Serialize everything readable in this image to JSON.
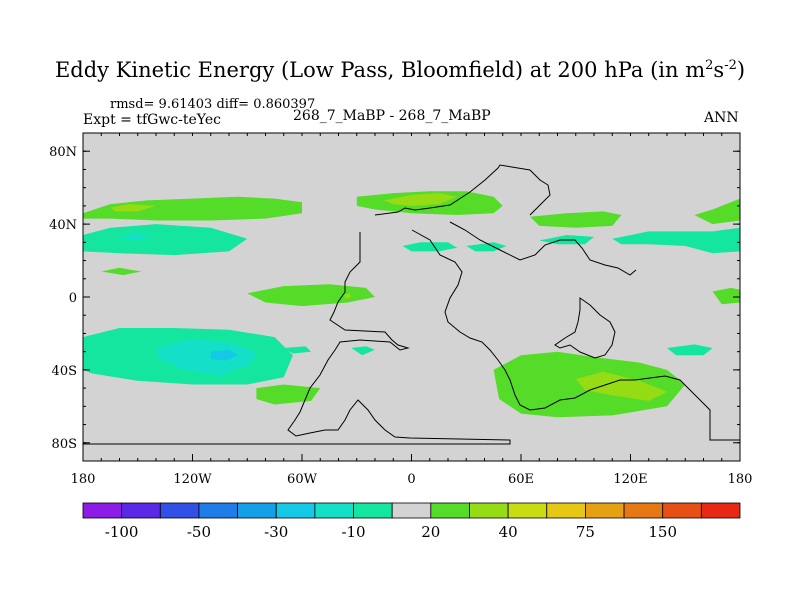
{
  "chart_data": {
    "type": "heatmap",
    "title": {
      "prefix": "Eddy Kinetic Energy (Low Pass, Bloomfield) at 200 hPa (in m",
      "sup1": "2",
      "mid": "s",
      "sup2": "-2",
      "suffix": ")"
    },
    "stats": "rmsd= 9.61403  diff= 0.860397",
    "expt": "Expt = tfGwc-teYec",
    "center_label": "268_7_MaBP - 268_7_MaBP",
    "season": "ANN",
    "x_range": [
      -180,
      180
    ],
    "y_range": [
      -90,
      90
    ],
    "x_ticks": [
      {
        "value": -180,
        "label": "180"
      },
      {
        "value": -120,
        "label": "120W"
      },
      {
        "value": -60,
        "label": "60W"
      },
      {
        "value": 0,
        "label": "0"
      },
      {
        "value": 60,
        "label": "60E"
      },
      {
        "value": 120,
        "label": "120E"
      },
      {
        "value": 180,
        "label": "180"
      }
    ],
    "y_ticks": [
      {
        "value": 80,
        "label": "80N"
      },
      {
        "value": 40,
        "label": "40N"
      },
      {
        "value": 0,
        "label": "0"
      },
      {
        "value": -40,
        "label": "40S"
      },
      {
        "value": -80,
        "label": "80S"
      }
    ],
    "background_color": "#d3d3d3",
    "colorbar": {
      "colors": [
        "#8c1de6",
        "#5a28e6",
        "#3250e6",
        "#1e7de6",
        "#14a0e6",
        "#14c8e6",
        "#14e0c8",
        "#14e6a0",
        "#d3d3d3",
        "#55dc28",
        "#96dc14",
        "#c8dc14",
        "#e6c814",
        "#e6a014",
        "#e67814",
        "#e65014",
        "#e62814"
      ],
      "labels": [
        {
          "index": 1,
          "label": "-100"
        },
        {
          "index": 3,
          "label": "-50"
        },
        {
          "index": 5,
          "label": "-30"
        },
        {
          "index": 7,
          "label": "-10"
        },
        {
          "index": 9,
          "label": "20"
        },
        {
          "index": 11,
          "label": "40"
        },
        {
          "index": 13,
          "label": "75"
        },
        {
          "index": 15,
          "label": "150"
        }
      ]
    },
    "regions": [
      {
        "name": "green-band-north-pacific",
        "color": "#55dc28",
        "points": [
          [
            -180,
            46
          ],
          [
            -165,
            51
          ],
          [
            -145,
            53
          ],
          [
            -120,
            54
          ],
          [
            -95,
            55
          ],
          [
            -75,
            54
          ],
          [
            -60,
            52
          ],
          [
            -60,
            46
          ],
          [
            -80,
            43
          ],
          [
            -110,
            42
          ],
          [
            -140,
            42
          ],
          [
            -165,
            43
          ],
          [
            -180,
            43
          ]
        ]
      },
      {
        "name": "yellow-patch-north-pacific",
        "color": "#96dc14",
        "points": [
          [
            -165,
            49
          ],
          [
            -155,
            51
          ],
          [
            -140,
            50
          ],
          [
            -150,
            47
          ],
          [
            -162,
            47
          ]
        ]
      },
      {
        "name": "cyan-band-north-pacific",
        "color": "#14e6a0",
        "points": [
          [
            -180,
            34
          ],
          [
            -165,
            38
          ],
          [
            -140,
            40
          ],
          [
            -110,
            38
          ],
          [
            -90,
            32
          ],
          [
            -100,
            25
          ],
          [
            -130,
            23
          ],
          [
            -160,
            24
          ],
          [
            -180,
            25
          ]
        ]
      },
      {
        "name": "blue-patch-north-pacific",
        "color": "#14e0c8",
        "points": [
          [
            -160,
            33
          ],
          [
            -150,
            35
          ],
          [
            -143,
            33
          ],
          [
            -152,
            31
          ]
        ]
      },
      {
        "name": "green-band-north-atlantic",
        "color": "#55dc28",
        "points": [
          [
            -30,
            55
          ],
          [
            -10,
            57
          ],
          [
            10,
            58
          ],
          [
            30,
            58
          ],
          [
            45,
            55
          ],
          [
            50,
            50
          ],
          [
            45,
            46
          ],
          [
            25,
            45
          ],
          [
            0,
            46
          ],
          [
            -20,
            48
          ],
          [
            -30,
            50
          ]
        ]
      },
      {
        "name": "yellow-patch-north-atlantic",
        "color": "#96dc14",
        "points": [
          [
            -15,
            53
          ],
          [
            0,
            56
          ],
          [
            15,
            57
          ],
          [
            25,
            55
          ],
          [
            15,
            51
          ],
          [
            0,
            50
          ],
          [
            -10,
            51
          ]
        ]
      },
      {
        "name": "cyan-patch-north-atlantic",
        "color": "#14e6a0",
        "points": [
          [
            -5,
            28
          ],
          [
            5,
            30
          ],
          [
            20,
            30
          ],
          [
            25,
            27
          ],
          [
            15,
            25
          ],
          [
            0,
            25
          ]
        ]
      },
      {
        "name": "cyan-patch-west-asia",
        "color": "#14e6a0",
        "points": [
          [
            30,
            28
          ],
          [
            45,
            30
          ],
          [
            52,
            28
          ],
          [
            45,
            25
          ],
          [
            35,
            25
          ]
        ]
      },
      {
        "name": "green-patch-east-asia",
        "color": "#55dc28",
        "points": [
          [
            65,
            44
          ],
          [
            85,
            46
          ],
          [
            105,
            47
          ],
          [
            115,
            45
          ],
          [
            110,
            39
          ],
          [
            90,
            38
          ],
          [
            70,
            39
          ]
        ]
      },
      {
        "name": "cyan-patch-asia",
        "color": "#14e6a0",
        "points": [
          [
            70,
            31
          ],
          [
            85,
            34
          ],
          [
            100,
            33
          ],
          [
            95,
            29
          ],
          [
            80,
            29
          ]
        ]
      },
      {
        "name": "green-band-north-west-pacific",
        "color": "#55dc28",
        "points": [
          [
            155,
            45
          ],
          [
            165,
            48
          ],
          [
            180,
            54
          ],
          [
            180,
            42
          ],
          [
            165,
            40
          ]
        ]
      },
      {
        "name": "cyan-band-west-pacific",
        "color": "#14e6a0",
        "points": [
          [
            110,
            32
          ],
          [
            130,
            36
          ],
          [
            150,
            36
          ],
          [
            165,
            36
          ],
          [
            180,
            38
          ],
          [
            180,
            25
          ],
          [
            165,
            24
          ],
          [
            150,
            28
          ],
          [
            130,
            29
          ],
          [
            115,
            29
          ]
        ]
      },
      {
        "name": "green-patch-equator-west",
        "color": "#55dc28",
        "points": [
          [
            -170,
            14
          ],
          [
            -160,
            16
          ],
          [
            -148,
            14
          ],
          [
            -158,
            12
          ]
        ]
      },
      {
        "name": "green-patch-equator",
        "color": "#55dc28",
        "points": [
          [
            -90,
            2
          ],
          [
            -70,
            6
          ],
          [
            -45,
            7
          ],
          [
            -25,
            5
          ],
          [
            -20,
            0
          ],
          [
            -35,
            -3
          ],
          [
            -60,
            -5
          ],
          [
            -80,
            -3
          ]
        ]
      },
      {
        "name": "yellow-dot-equator",
        "color": "#96dc14",
        "points": [
          [
            -37,
            1
          ],
          [
            -34,
            2
          ],
          [
            -33,
            0
          ],
          [
            -36,
            -1
          ]
        ]
      },
      {
        "name": "green-patch-equator-west-pacific",
        "color": "#55dc28",
        "points": [
          [
            165,
            3
          ],
          [
            175,
            5
          ],
          [
            180,
            4
          ],
          [
            180,
            -3
          ],
          [
            170,
            -4
          ]
        ]
      },
      {
        "name": "cyan-band-south-pacific",
        "color": "#14e6a0",
        "points": [
          [
            -180,
            -22
          ],
          [
            -160,
            -17
          ],
          [
            -130,
            -17
          ],
          [
            -100,
            -18
          ],
          [
            -75,
            -22
          ],
          [
            -65,
            -32
          ],
          [
            -70,
            -44
          ],
          [
            -90,
            -48
          ],
          [
            -120,
            -48
          ],
          [
            -150,
            -46
          ],
          [
            -175,
            -42
          ],
          [
            -180,
            -40
          ]
        ]
      },
      {
        "name": "blue-patch-south-pacific",
        "color": "#14e0c8",
        "points": [
          [
            -140,
            -28
          ],
          [
            -120,
            -23
          ],
          [
            -100,
            -25
          ],
          [
            -85,
            -30
          ],
          [
            -88,
            -37
          ],
          [
            -105,
            -43
          ],
          [
            -125,
            -40
          ],
          [
            -138,
            -34
          ]
        ]
      },
      {
        "name": "blue-core-south-pacific",
        "color": "#14c8e6",
        "points": [
          [
            -110,
            -30
          ],
          [
            -100,
            -29
          ],
          [
            -95,
            -32
          ],
          [
            -102,
            -35
          ],
          [
            -110,
            -34
          ]
        ]
      },
      {
        "name": "cyan-patch-south-america",
        "color": "#14e6a0",
        "points": [
          [
            -33,
            -28
          ],
          [
            -25,
            -27
          ],
          [
            -20,
            -29
          ],
          [
            -27,
            -32
          ]
        ]
      },
      {
        "name": "green-band-south-indian",
        "color": "#55dc28",
        "points": [
          [
            45,
            -40
          ],
          [
            60,
            -32
          ],
          [
            80,
            -30
          ],
          [
            100,
            -33
          ],
          [
            125,
            -36
          ],
          [
            140,
            -40
          ],
          [
            150,
            -48
          ],
          [
            140,
            -60
          ],
          [
            110,
            -65
          ],
          [
            80,
            -66
          ],
          [
            60,
            -64
          ],
          [
            48,
            -56
          ]
        ]
      },
      {
        "name": "yellow-patch-south-indian",
        "color": "#96dc14",
        "points": [
          [
            90,
            -45
          ],
          [
            105,
            -41
          ],
          [
            125,
            -46
          ],
          [
            140,
            -52
          ],
          [
            130,
            -57
          ],
          [
            110,
            -54
          ],
          [
            95,
            -51
          ]
        ]
      },
      {
        "name": "green-patch-south-atlantic",
        "color": "#55dc28",
        "points": [
          [
            -85,
            -50
          ],
          [
            -70,
            -48
          ],
          [
            -50,
            -50
          ],
          [
            -55,
            -57
          ],
          [
            -75,
            -59
          ],
          [
            -85,
            -56
          ]
        ]
      },
      {
        "name": "cyan-patch-south-east",
        "color": "#14e6a0",
        "points": [
          [
            140,
            -28
          ],
          [
            155,
            -26
          ],
          [
            165,
            -28
          ],
          [
            160,
            -32
          ],
          [
            145,
            -32
          ]
        ]
      },
      {
        "name": "cyan-patch-south-west",
        "color": "#14e6a0",
        "points": [
          [
            -70,
            -28
          ],
          [
            -58,
            -27
          ],
          [
            -55,
            -30
          ],
          [
            -65,
            -31
          ]
        ]
      }
    ]
  }
}
